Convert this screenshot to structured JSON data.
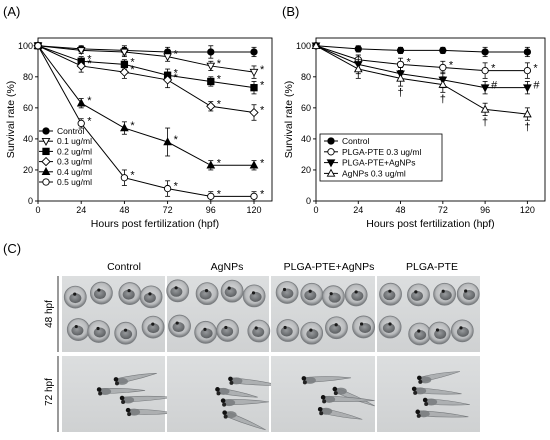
{
  "panels": {
    "a_label": "(A)",
    "b_label": "(B)",
    "c_label": "(C)"
  },
  "chart_data": [
    {
      "type": "line",
      "panel": "(A)",
      "xlabel": "Hours post fertilization (hpf)",
      "ylabel": "Survival rate (%)",
      "x": [
        0,
        24,
        48,
        72,
        96,
        120
      ],
      "xticks": [
        "0",
        "24",
        "48",
        "72",
        "96",
        "120"
      ],
      "yticks": [
        "0",
        "20",
        "40",
        "60",
        "80",
        "100"
      ],
      "xlim": [
        0,
        130
      ],
      "ylim": [
        0,
        105
      ],
      "legend_position": "bottom-left",
      "series": [
        {
          "name": "Control",
          "marker": "circle-filled",
          "values": [
            100,
            98,
            97,
            96,
            96,
            96
          ],
          "errors": [
            0,
            2,
            3,
            3,
            4,
            3
          ],
          "stars": [
            false,
            false,
            false,
            false,
            false,
            false
          ]
        },
        {
          "name": "0.1 ug/ml",
          "marker": "triangle-down-open",
          "values": [
            100,
            97,
            96,
            93,
            87,
            83
          ],
          "errors": [
            0,
            2,
            3,
            3,
            3,
            4
          ],
          "stars": [
            false,
            false,
            false,
            true,
            true,
            true
          ]
        },
        {
          "name": "0.2 ug/ml",
          "marker": "square-filled",
          "values": [
            100,
            90,
            88,
            81,
            77,
            73
          ],
          "errors": [
            0,
            3,
            3,
            4,
            3,
            4
          ],
          "stars": [
            false,
            true,
            true,
            true,
            true,
            true
          ]
        },
        {
          "name": "0.3 ug/ml",
          "marker": "diamond-open",
          "values": [
            100,
            87,
            83,
            78,
            61,
            57
          ],
          "errors": [
            0,
            4,
            4,
            5,
            3,
            5
          ],
          "stars": [
            false,
            true,
            true,
            true,
            true,
            true
          ]
        },
        {
          "name": "0.4 ug/ml",
          "marker": "triangle-up-filled",
          "values": [
            100,
            63,
            47,
            38,
            23,
            23
          ],
          "errors": [
            0,
            3,
            4,
            9,
            3,
            3
          ],
          "stars": [
            false,
            true,
            true,
            true,
            true,
            true
          ]
        },
        {
          "name": "0.5 ug/ml",
          "marker": "circle-open",
          "values": [
            100,
            50,
            15,
            8,
            3,
            3
          ],
          "errors": [
            0,
            3,
            5,
            5,
            3,
            3
          ],
          "stars": [
            false,
            true,
            true,
            true,
            true,
            true
          ]
        }
      ],
      "star_symbol": "*"
    },
    {
      "type": "line",
      "panel": "(B)",
      "xlabel": "Hours post fertilization (hpf)",
      "ylabel": "Survival rate (%)",
      "x": [
        0,
        24,
        48,
        72,
        96,
        120
      ],
      "xticks": [
        "0",
        "24",
        "48",
        "72",
        "96",
        "120"
      ],
      "yticks": [
        "0",
        "20",
        "40",
        "60",
        "80",
        "100"
      ],
      "xlim": [
        0,
        130
      ],
      "ylim": [
        0,
        105
      ],
      "legend_position": "bottom-left",
      "series": [
        {
          "name": "Control",
          "marker": "circle-filled",
          "values": [
            100,
            98,
            97,
            97,
            96,
            96
          ],
          "errors": [
            0,
            2,
            2,
            2,
            3,
            3
          ],
          "marks": [
            "",
            "",
            "",
            "",
            "",
            ""
          ]
        },
        {
          "name": "PLGA-PTE 0.3 ug/ml",
          "marker": "circle-open",
          "values": [
            100,
            91,
            88,
            86,
            84,
            84
          ],
          "errors": [
            0,
            3,
            4,
            4,
            5,
            5
          ],
          "marks": [
            "",
            "",
            "*",
            "*",
            "*",
            "*"
          ]
        },
        {
          "name": "PLGA-PTE+AgNPs",
          "marker": "triangle-down-filled",
          "values": [
            100,
            88,
            82,
            78,
            73,
            73
          ],
          "errors": [
            0,
            6,
            4,
            5,
            4,
            4
          ],
          "marks": [
            "",
            "",
            "",
            "",
            "#",
            "#"
          ]
        },
        {
          "name": "AgNPs 0.3 ug/ml",
          "marker": "triangle-up-open",
          "values": [
            100,
            85,
            79,
            75,
            59,
            56
          ],
          "errors": [
            0,
            6,
            5,
            5,
            4,
            4
          ],
          "marks": [
            "",
            "",
            "†",
            "†",
            "†",
            "†"
          ]
        }
      ]
    }
  ],
  "photo_panel": {
    "columns": [
      "Control",
      "AgNPs",
      "PLGA-PTE+AgNPs",
      "PLGA-PTE"
    ],
    "rows": [
      "48 hpf",
      "72 hpf"
    ]
  }
}
